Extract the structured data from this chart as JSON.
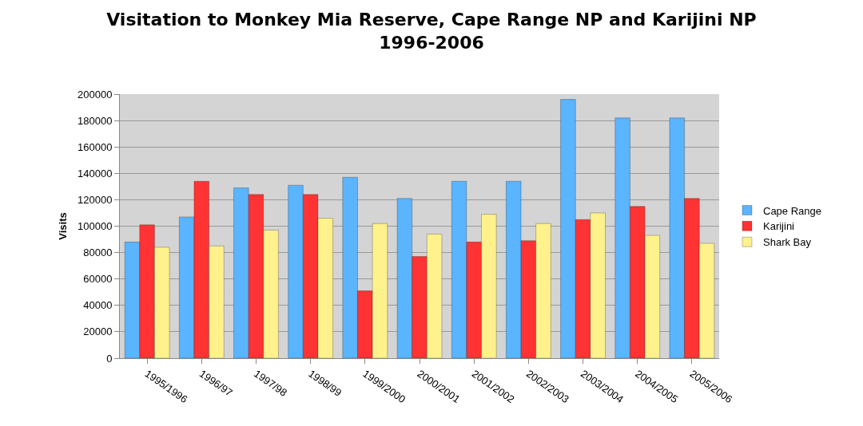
{
  "chart_data": {
    "type": "bar",
    "title": "Visitation to Monkey Mia Reserve, Cape Range NP and Karijini NP\n1996-2006",
    "ylabel": "Visits",
    "categories": [
      "1995/1996",
      "1996/97",
      "1997/98",
      "1998/99",
      "1999/2000",
      "2000/2001",
      "2001/2002",
      "2002/2003",
      "2003/2004",
      "2004/2005",
      "2005/2006"
    ],
    "series": [
      {
        "name": "Cape Range",
        "color": "#5ab4fe",
        "values": [
          88000,
          107000,
          129000,
          131000,
          137000,
          121000,
          134000,
          134000,
          196000,
          182000,
          182000
        ]
      },
      {
        "name": "Karijini",
        "color": "#ff3333",
        "values": [
          101000,
          134000,
          124000,
          124000,
          51000,
          77000,
          88000,
          89000,
          105000,
          115000,
          121000
        ]
      },
      {
        "name": "Shark Bay",
        "color": "#fff18c",
        "values": [
          84000,
          85000,
          97000,
          106000,
          102000,
          94000,
          109000,
          102000,
          110000,
          93000,
          87000
        ]
      }
    ],
    "ylim": [
      0,
      200000
    ],
    "yticks": [
      0,
      20000,
      40000,
      60000,
      80000,
      100000,
      120000,
      140000,
      160000,
      180000,
      200000
    ],
    "grid": "y",
    "legend": "right"
  }
}
